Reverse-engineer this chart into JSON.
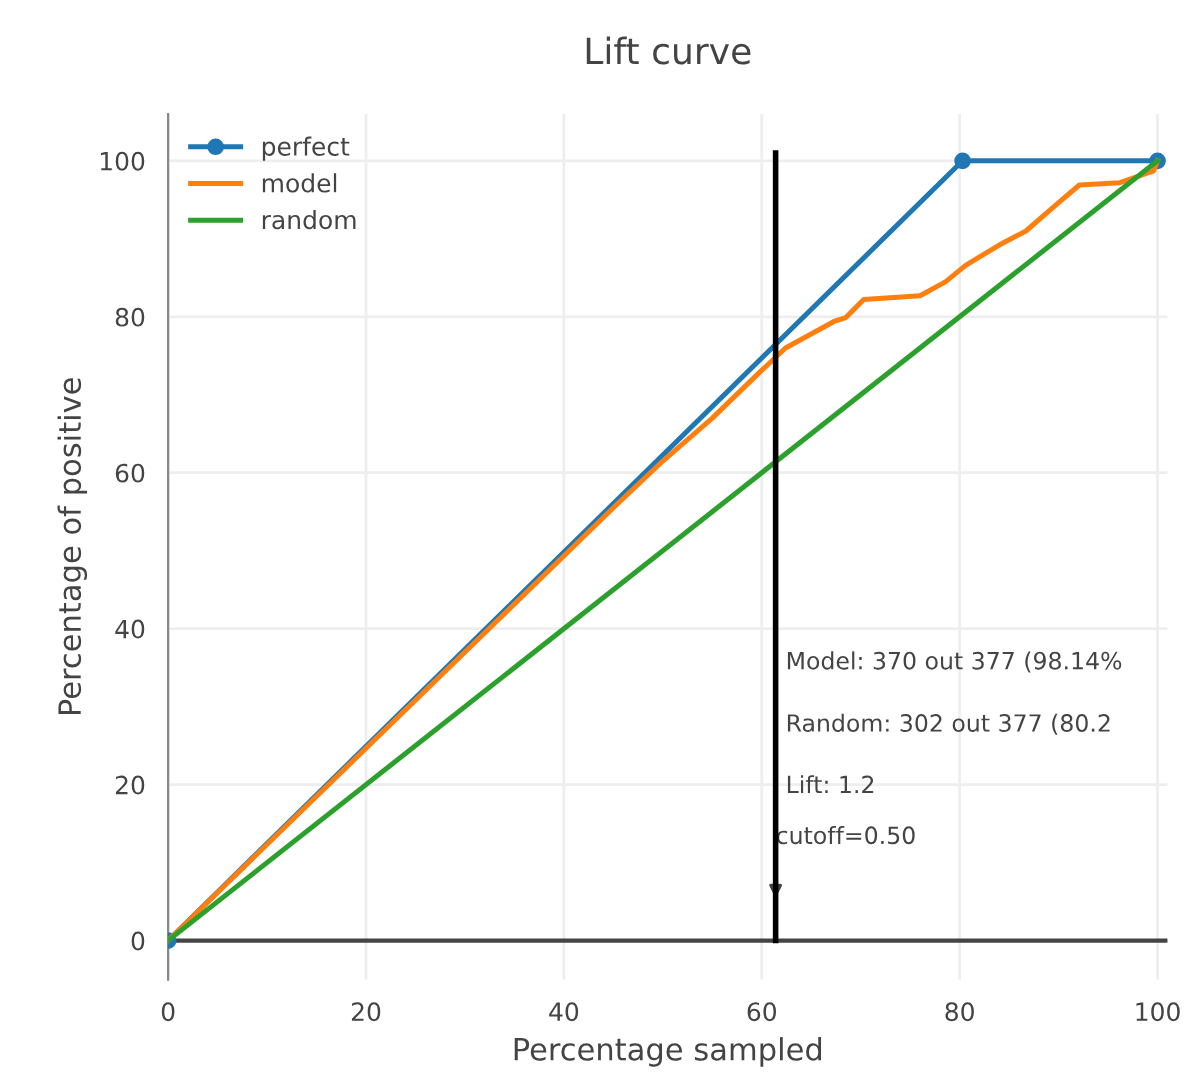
{
  "chart_data": {
    "type": "line",
    "title": "Lift curve",
    "xlabel": "Percentage sampled",
    "ylabel": "Percentage of positive",
    "xlim": [
      0,
      101
    ],
    "ylim": [
      -5,
      106
    ],
    "xticks": [
      0,
      20,
      40,
      60,
      80,
      100
    ],
    "yticks": [
      0,
      20,
      40,
      60,
      80,
      100
    ],
    "grid": true,
    "legend": "top left",
    "series": [
      {
        "name": "perfect",
        "color": "#1f77b4",
        "marker": "circle",
        "x": [
          0,
          80.3,
          100
        ],
        "values": [
          0,
          100,
          100
        ]
      },
      {
        "name": "model",
        "color": "#ff7f0e",
        "x": [
          0,
          45,
          50,
          55,
          59.8,
          62.4,
          67.3,
          68.5,
          70.3,
          76.0,
          78.6,
          80.6,
          84.0,
          86.7,
          89.5,
          92.1,
          96.2,
          99.6,
          100
        ],
        "values": [
          0,
          55.5,
          61.5,
          67,
          72.9,
          76.0,
          79.4,
          79.9,
          82.2,
          82.7,
          84.5,
          86.6,
          89.2,
          91.0,
          94.1,
          96.9,
          97.2,
          98.7,
          100
        ]
      },
      {
        "name": "random",
        "color": "#2ca02c",
        "x": [
          0,
          100
        ],
        "values": [
          0,
          100
        ]
      }
    ],
    "ref_lines": [
      {
        "axis": "x",
        "value": 61.4,
        "color": "#000000"
      }
    ],
    "annotations": [
      "Model: 370 out 377 (98.14%",
      "Random: 302 out 377 (80.2",
      "Lift: 1.2",
      {
        "text": "cutoff=0.50",
        "x": 61.4,
        "y": 5.4
      }
    ]
  }
}
